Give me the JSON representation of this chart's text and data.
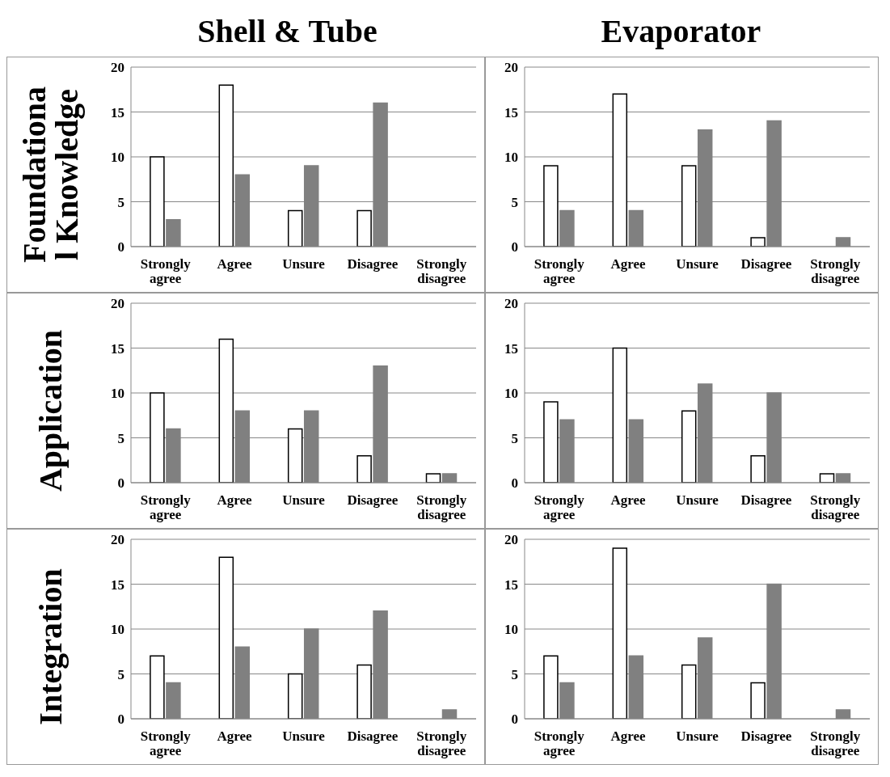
{
  "chart_data": [
    {
      "type": "bar",
      "title": "Shell & Tube",
      "ylabel": "Foundationa\nl Knowledge",
      "categories": [
        "Strongly agree",
        "Agree",
        "Unsure",
        "Disagree",
        "Strongly disagree"
      ],
      "series": [
        {
          "color": "#ffffff",
          "values": [
            10,
            18,
            4,
            4,
            0
          ]
        },
        {
          "color": "#808080",
          "values": [
            3,
            8,
            9,
            16,
            0
          ]
        }
      ],
      "ylim": [
        0,
        20
      ],
      "yticks": [
        0,
        5,
        10,
        15,
        20
      ],
      "grid": "y"
    },
    {
      "type": "bar",
      "title": "Evaporator",
      "categories": [
        "Strongly agree",
        "Agree",
        "Unsure",
        "Disagree",
        "Strongly disagree"
      ],
      "series": [
        {
          "color": "#ffffff",
          "values": [
            9,
            17,
            9,
            1,
            0
          ]
        },
        {
          "color": "#808080",
          "values": [
            4,
            4,
            13,
            14,
            1
          ]
        }
      ],
      "ylim": [
        0,
        20
      ],
      "yticks": [
        0,
        5,
        10,
        15,
        20
      ],
      "grid": "y"
    },
    {
      "type": "bar",
      "ylabel": "Application",
      "categories": [
        "Strongly agree",
        "Agree",
        "Unsure",
        "Disagree",
        "Strongly disagree"
      ],
      "series": [
        {
          "color": "#ffffff",
          "values": [
            10,
            16,
            6,
            3,
            1
          ]
        },
        {
          "color": "#808080",
          "values": [
            6,
            8,
            8,
            13,
            1
          ]
        }
      ],
      "ylim": [
        0,
        20
      ],
      "yticks": [
        0,
        5,
        10,
        15,
        20
      ],
      "grid": "y"
    },
    {
      "type": "bar",
      "categories": [
        "Strongly agree",
        "Agree",
        "Unsure",
        "Disagree",
        "Strongly disagree"
      ],
      "series": [
        {
          "color": "#ffffff",
          "values": [
            9,
            15,
            8,
            3,
            1
          ]
        },
        {
          "color": "#808080",
          "values": [
            7,
            7,
            11,
            10,
            1
          ]
        }
      ],
      "ylim": [
        0,
        20
      ],
      "yticks": [
        0,
        5,
        10,
        15,
        20
      ],
      "grid": "y"
    },
    {
      "type": "bar",
      "ylabel": "Integration",
      "categories": [
        "Strongly agree",
        "Agree",
        "Unsure",
        "Disagree",
        "Strongly disagree"
      ],
      "series": [
        {
          "color": "#ffffff",
          "values": [
            7,
            18,
            5,
            6,
            0
          ]
        },
        {
          "color": "#808080",
          "values": [
            4,
            8,
            10,
            12,
            1
          ]
        }
      ],
      "ylim": [
        0,
        20
      ],
      "yticks": [
        0,
        5,
        10,
        15,
        20
      ],
      "grid": "y"
    },
    {
      "type": "bar",
      "categories": [
        "Strongly agree",
        "Agree",
        "Unsure",
        "Disagree",
        "Strongly disagree"
      ],
      "series": [
        {
          "color": "#ffffff",
          "values": [
            7,
            19,
            6,
            4,
            0
          ]
        },
        {
          "color": "#808080",
          "values": [
            4,
            7,
            9,
            15,
            1
          ]
        }
      ],
      "ylim": [
        0,
        20
      ],
      "yticks": [
        0,
        5,
        10,
        15,
        20
      ],
      "grid": "y"
    }
  ]
}
